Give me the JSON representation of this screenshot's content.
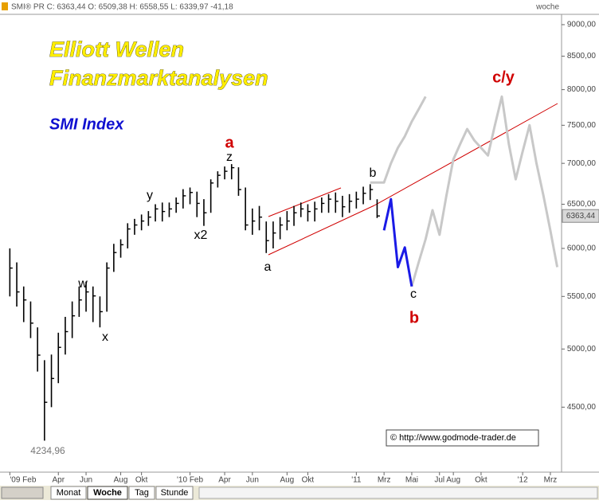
{
  "header": {
    "quote": "SMI® PR C: 6363,44 O: 6509,38 H: 6558,55 L: 6339,97 -41,18",
    "period": "woche"
  },
  "chart_data": {
    "type": "ohlc",
    "title": "Elliott Wellen",
    "subtitle": "Finanzmarktanalysen",
    "index_name": "SMI Index",
    "log_y": true,
    "grid": false,
    "ylim": [
      4000,
      9170
    ],
    "yticks": [
      {
        "value": 4500,
        "label": "4500,00"
      },
      {
        "value": 5000,
        "label": "5000,00"
      },
      {
        "value": 5500,
        "label": "5500,00"
      },
      {
        "value": 6000,
        "label": "6000,00"
      },
      {
        "value": 6500,
        "label": "6500,00"
      },
      {
        "value": 7000,
        "label": "7000,00"
      },
      {
        "value": 7500,
        "label": "7500,00"
      },
      {
        "value": 8000,
        "label": "8000,00"
      },
      {
        "value": 8500,
        "label": "8500,00"
      },
      {
        "value": 9000,
        "label": "9000,00"
      }
    ],
    "categories": [
      "'09 Feb",
      null,
      null,
      null,
      null,
      null,
      null,
      "Apr",
      null,
      null,
      null,
      "Jun",
      null,
      null,
      null,
      null,
      "Aug",
      null,
      null,
      "Okt",
      null,
      null,
      null,
      null,
      null,
      null,
      "'10 Feb",
      null,
      null,
      null,
      null,
      "Apr",
      null,
      null,
      null,
      "Jun",
      null,
      null,
      null,
      null,
      "Aug",
      null,
      null,
      "Okt",
      null,
      null,
      null,
      null,
      null,
      null,
      "'11",
      null,
      null,
      null,
      "Mrz",
      null,
      null,
      null,
      "Mai",
      null,
      null,
      null,
      "Jul",
      null,
      "Aug",
      null,
      null,
      null,
      "Okt",
      null,
      null,
      null,
      null,
      null,
      "'12",
      null,
      null,
      null,
      "Mrz",
      null
    ],
    "color": "#000000",
    "high": [
      6000,
      5850,
      5600,
      5450,
      5200,
      4900,
      4950,
      5150,
      5300,
      5450,
      5600,
      5650,
      5600,
      5500,
      5850,
      6050,
      6100,
      6280,
      6330,
      6380,
      6420,
      6500,
      6520,
      6520,
      6580,
      6680,
      6700,
      6650,
      6560,
      6800,
      6900,
      6960,
      6990,
      6950,
      6700,
      6450,
      6480,
      6300,
      6300,
      6350,
      6420,
      6480,
      6520,
      6500,
      6530,
      6580,
      6620,
      6640,
      6600,
      6620,
      6650,
      6710,
      6740,
      6558.55,
      null,
      null,
      null,
      null,
      null,
      null,
      null,
      null,
      null,
      null,
      null,
      null,
      null,
      null,
      null,
      null,
      null,
      null,
      null,
      null,
      null,
      null,
      null,
      null,
      null,
      null
    ],
    "low": [
      5500,
      5400,
      5250,
      5100,
      4800,
      4234.96,
      4500,
      4700,
      4950,
      5100,
      5300,
      5350,
      5250,
      5200,
      5350,
      5750,
      5900,
      6000,
      6150,
      6200,
      6250,
      6300,
      6300,
      6350,
      6400,
      6450,
      6500,
      6350,
      6250,
      6400,
      6700,
      6800,
      6800,
      6600,
      6200,
      6150,
      6200,
      5950,
      6000,
      6100,
      6200,
      6250,
      6350,
      6300,
      6300,
      6400,
      6400,
      6400,
      6350,
      6400,
      6450,
      6500,
      6550,
      6339.97,
      null,
      null,
      null,
      null,
      null,
      null,
      null,
      null,
      null,
      null,
      null,
      null,
      null,
      null,
      null,
      null,
      null,
      null,
      null,
      null,
      null,
      null,
      null,
      null,
      null,
      null
    ],
    "close": [
      5790,
      5545,
      5465,
      5240,
      4945,
      4540,
      4740,
      5015,
      5160,
      5310,
      5465,
      5545,
      5505,
      5350,
      5790,
      5955,
      6040,
      6215,
      6260,
      6305,
      6350,
      6445,
      6415,
      6445,
      6510,
      6600,
      6640,
      6510,
      6400,
      6755,
      6850,
      6900,
      6945,
      6675,
      6260,
      6305,
      6350,
      6085,
      6170,
      6260,
      6305,
      6400,
      6445,
      6415,
      6445,
      6510,
      6560,
      6535,
      6470,
      6535,
      6560,
      6630,
      6675,
      6363.44,
      null,
      null,
      null,
      null,
      null,
      null,
      null,
      null,
      null,
      null,
      null,
      null,
      null,
      null,
      null,
      null,
      null,
      null,
      null,
      null,
      null,
      null,
      null,
      null,
      null,
      null
    ],
    "projections": [
      {
        "color": "#c8c8c8",
        "values": [
          null,
          null,
          null,
          null,
          null,
          null,
          null,
          null,
          null,
          null,
          null,
          null,
          null,
          null,
          null,
          null,
          null,
          null,
          null,
          null,
          null,
          null,
          null,
          null,
          null,
          null,
          null,
          null,
          null,
          null,
          null,
          null,
          null,
          null,
          null,
          null,
          null,
          null,
          null,
          null,
          null,
          null,
          null,
          null,
          null,
          null,
          null,
          null,
          null,
          null,
          null,
          null,
          6760,
          6760,
          6760,
          7000,
          7200,
          7350,
          7550,
          7720,
          7900,
          null,
          null,
          null,
          null,
          null,
          null,
          null,
          null,
          null,
          null,
          null,
          null,
          null,
          null,
          null,
          null,
          null,
          null,
          null
        ]
      },
      {
        "color": "#c8c8c8",
        "values": [
          null,
          null,
          null,
          null,
          null,
          null,
          null,
          null,
          null,
          null,
          null,
          null,
          null,
          null,
          null,
          null,
          null,
          null,
          null,
          null,
          null,
          null,
          null,
          null,
          null,
          null,
          null,
          null,
          null,
          null,
          null,
          null,
          null,
          null,
          null,
          null,
          null,
          null,
          null,
          null,
          null,
          null,
          null,
          null,
          null,
          null,
          null,
          null,
          null,
          null,
          null,
          null,
          null,
          null,
          null,
          null,
          null,
          null,
          5600,
          5850,
          6100,
          6430,
          6150,
          6600,
          7050,
          7250,
          7450,
          7300,
          7200,
          7100,
          7500,
          7900,
          7250,
          6800,
          7150,
          7500,
          7000,
          6600,
          6200,
          5800
        ]
      },
      {
        "color": "#1a1ae6",
        "values": [
          null,
          null,
          null,
          null,
          null,
          null,
          null,
          null,
          null,
          null,
          null,
          null,
          null,
          null,
          null,
          null,
          null,
          null,
          null,
          null,
          null,
          null,
          null,
          null,
          null,
          null,
          null,
          null,
          null,
          null,
          null,
          null,
          null,
          null,
          null,
          null,
          null,
          null,
          null,
          null,
          null,
          null,
          null,
          null,
          null,
          null,
          null,
          null,
          null,
          null,
          null,
          null,
          null,
          null,
          6200,
          6560,
          5800,
          6010,
          5600,
          null,
          null,
          null,
          null,
          null,
          null,
          null,
          null,
          null,
          null,
          null,
          null,
          null,
          null,
          null,
          null,
          null,
          null,
          null,
          null,
          null
        ]
      }
    ],
    "last_price_label": "6363,44",
    "low_label": "4234,96",
    "wave_labels": [
      "a",
      "z",
      "y",
      "x2",
      "w",
      "x",
      "a",
      "b",
      "c",
      "b",
      "c/y"
    ],
    "source": "© http://www.godmode-trader.de"
  },
  "tabs": [
    "Monat",
    "Woche",
    "Tag",
    "Stunde"
  ]
}
